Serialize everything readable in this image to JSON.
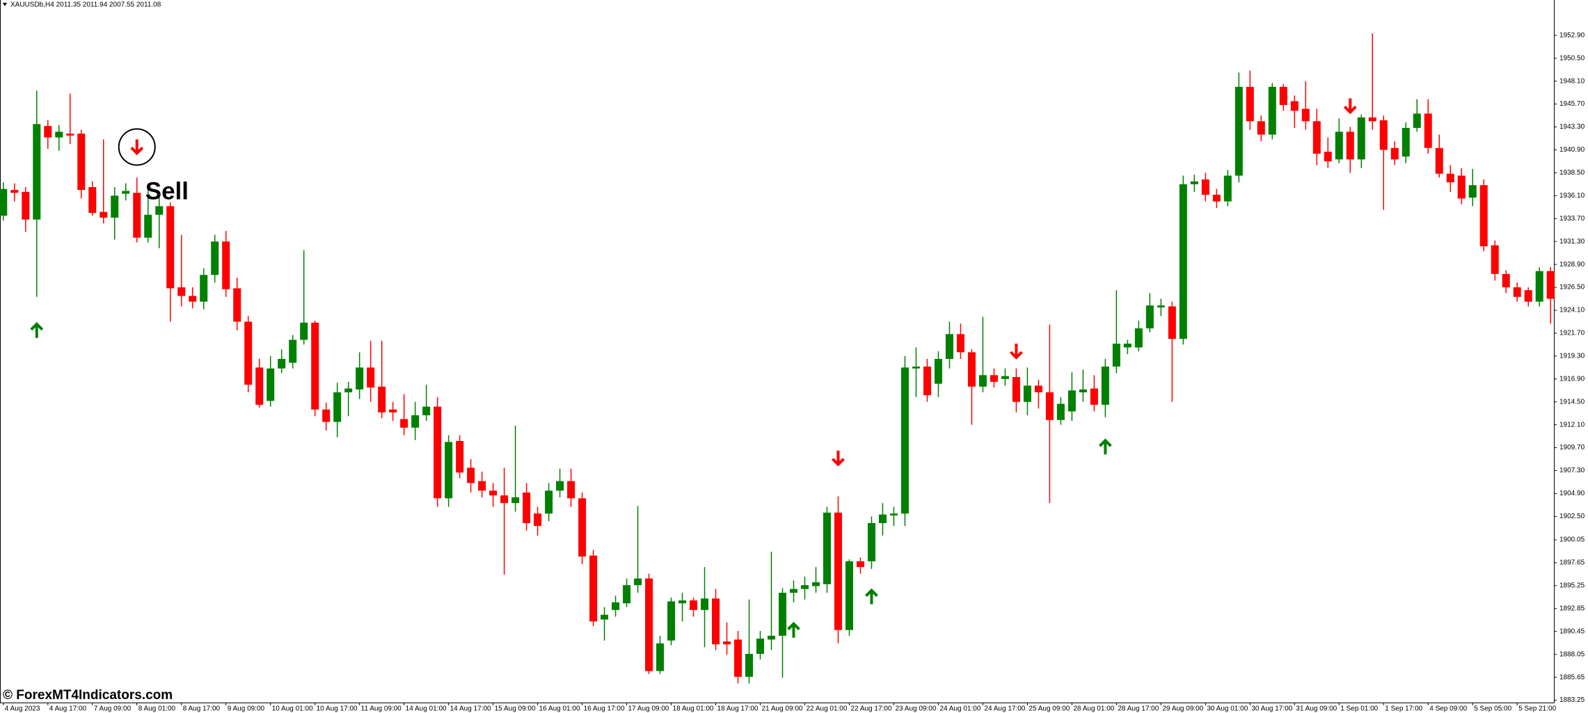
{
  "chart_data": {
    "type": "candlestick",
    "title": "XAUUSDb,H4  2011.35 2011.94 2007.55 2011.08",
    "watermark": "© ForexMT4Indicators.com",
    "annotation": "Sell",
    "up_color": "#008000",
    "down_color": "#ff0000",
    "open": [
      1934.0,
      1936.7,
      1936.5,
      1933.6,
      1943.4,
      1942.2,
      1942.6,
      1942.6,
      1937.0,
      1934.4,
      1933.8,
      1936.3,
      1936.4,
      1931.7,
      1934.1,
      1935.0,
      1926.5,
      1925.6,
      1925.0,
      1927.8,
      1931.3,
      1926.4,
      1922.9,
      1918.1,
      1914.6,
      1918.0,
      1918.6,
      1921.0,
      1922.8,
      1913.7,
      1912.4,
      1915.5,
      1915.8,
      1918.1,
      1916.1,
      1913.7,
      1912.7,
      1911.8,
      1913.1,
      1914.0,
      1904.4,
      1910.4,
      1907.6,
      1906.2,
      1905.2,
      1904.7,
      1903.9,
      1905.0,
      1902.8,
      1902.8,
      1905.2,
      1906.2,
      1904.4,
      1898.4,
      1891.7,
      1892.7,
      1893.4,
      1895.3,
      1896.0,
      1886.3,
      1889.5,
      1893.4,
      1893.7,
      1892.7,
      1893.9,
      1889.4,
      1889.6,
      1885.7,
      1888.1,
      1889.6,
      1890.0,
      1894.5,
      1894.9,
      1895.2,
      1895.4,
      1902.9,
      1890.6,
      1897.8,
      1897.8,
      1901.8,
      1902.6,
      1902.8,
      1918.0,
      1918.2,
      1916.4,
      1919.0,
      1921.6,
      1919.7,
      1916.1,
      1917.3,
      1916.9,
      1917.1,
      1914.5,
      1916.2,
      1915.5,
      1912.6,
      1913.5,
      1915.5,
      1915.9,
      1914.2,
      1918.2,
      1920.2,
      1920.2,
      1922.2,
      1924.4,
      1924.5,
      1921.1,
      1937.3,
      1937.8,
      1936.2,
      1935.5,
      1938.2,
      1947.5,
      1943.9,
      1942.5,
      1947.5,
      1946.0,
      1945.2,
      1943.9,
      1940.7,
      1939.9,
      1942.8,
      1939.9,
      1944.3,
      1944.0,
      1941.1,
      1940.2,
      1943.2,
      1944.7,
      1941.1,
      1938.4,
      1938.2,
      1935.9,
      1937.2,
      1930.9,
      1927.9,
      1926.5,
      1926.2,
      1925.0,
      1928.2
    ],
    "high": [
      1937.5,
      1937.4,
      1937.0,
      1947.1,
      1944.0,
      1943.5,
      1946.8,
      1943.0,
      1937.6,
      1942.0,
      1937.0,
      1937.4,
      1938.0,
      1937.0,
      1936.0,
      1935.4,
      1932.0,
      1926.5,
      1928.5,
      1932.0,
      1932.4,
      1927.5,
      1923.5,
      1919.0,
      1919.3,
      1920.0,
      1921.5,
      1930.4,
      1923.0,
      1914.4,
      1916.5,
      1916.6,
      1919.7,
      1920.9,
      1920.9,
      1914.5,
      1915.3,
      1914.5,
      1916.3,
      1915.0,
      1911.0,
      1911.0,
      1908.5,
      1907.2,
      1906.0,
      1907.6,
      1912.0,
      1906.0,
      1903.5,
      1906.0,
      1907.5,
      1907.5,
      1905.0,
      1899.0,
      1893.0,
      1894.2,
      1896.0,
      1903.6,
      1896.5,
      1890.0,
      1894.0,
      1894.5,
      1894.0,
      1897.2,
      1894.9,
      1891.4,
      1890.5,
      1893.8,
      1890.5,
      1898.8,
      1895.0,
      1895.8,
      1896.2,
      1897.2,
      1903.5,
      1904.6,
      1898.0,
      1898.2,
      1902.5,
      1903.9,
      1903.5,
      1919.3,
      1920.2,
      1919.0,
      1919.8,
      1922.9,
      1922.7,
      1920.0,
      1923.4,
      1918.0,
      1918.0,
      1918.0,
      1918.1,
      1916.8,
      1922.6,
      1915.0,
      1917.6,
      1917.9,
      1917.3,
      1919.0,
      1926.2,
      1921.0,
      1923.0,
      1925.9,
      1925.3,
      1925.0,
      1938.2,
      1938.3,
      1938.5,
      1936.8,
      1938.8,
      1949.0,
      1949.2,
      1944.5,
      1947.9,
      1947.8,
      1946.6,
      1948.1,
      1945.2,
      1942.2,
      1944.2,
      1943.3,
      1944.6,
      1953.1,
      1944.5,
      1941.8,
      1943.8,
      1946.2,
      1946.2,
      1942.5,
      1939.3,
      1939.0,
      1938.9,
      1937.8,
      1931.4,
      1928.3,
      1927.0,
      1926.5,
      1928.6,
      1928.6
    ],
    "low": [
      1933.5,
      1935.5,
      1932.3,
      1925.5,
      1941.0,
      1940.8,
      1941.5,
      1935.8,
      1934.0,
      1933.2,
      1931.5,
      1935.6,
      1931.2,
      1931.2,
      1930.6,
      1922.9,
      1924.5,
      1924.3,
      1924.2,
      1927.0,
      1925.5,
      1922.0,
      1915.5,
      1913.9,
      1914.0,
      1917.5,
      1918.0,
      1920.5,
      1913.0,
      1911.5,
      1910.8,
      1913.0,
      1914.8,
      1914.5,
      1912.8,
      1912.5,
      1911.0,
      1910.5,
      1912.5,
      1903.5,
      1903.5,
      1906.5,
      1905.0,
      1904.5,
      1903.5,
      1896.4,
      1903.0,
      1901.0,
      1900.5,
      1902.0,
      1904.5,
      1903.5,
      1897.5,
      1891.0,
      1889.5,
      1892.0,
      1893.0,
      1894.5,
      1886.0,
      1886.0,
      1889.0,
      1891.5,
      1892.0,
      1888.8,
      1888.5,
      1888.0,
      1885.0,
      1885.0,
      1887.5,
      1888.5,
      1885.6,
      1893.5,
      1893.8,
      1894.5,
      1894.5,
      1889.2,
      1890.0,
      1896.5,
      1897.0,
      1900.5,
      1901.5,
      1901.5,
      1915.0,
      1914.5,
      1915.0,
      1918.0,
      1919.0,
      1912.1,
      1915.5,
      1916.0,
      1916.2,
      1913.4,
      1913.1,
      1913.8,
      1903.9,
      1912.1,
      1912.5,
      1914.5,
      1913.5,
      1912.9,
      1917.5,
      1919.5,
      1919.8,
      1921.8,
      1923.5,
      1914.5,
      1920.5,
      1936.5,
      1935.5,
      1934.8,
      1935.0,
      1937.5,
      1943.0,
      1941.8,
      1942.0,
      1945.0,
      1943.2,
      1943.0,
      1939.3,
      1939.0,
      1939.5,
      1938.5,
      1939.0,
      1943.0,
      1934.6,
      1939.3,
      1939.5,
      1942.8,
      1940.5,
      1938.0,
      1936.5,
      1935.2,
      1935.0,
      1930.3,
      1927.2,
      1925.9,
      1925.0,
      1924.5,
      1924.5,
      1922.7
    ],
    "close": [
      1936.8,
      1936.4,
      1933.6,
      1943.6,
      1942.2,
      1942.8,
      1942.4,
      1936.7,
      1934.3,
      1933.8,
      1936.1,
      1936.6,
      1931.7,
      1934.1,
      1935.0,
      1926.4,
      1925.6,
      1925.0,
      1927.8,
      1931.3,
      1926.3,
      1922.9,
      1916.3,
      1914.2,
      1918.0,
      1919.0,
      1921.0,
      1922.8,
      1913.7,
      1912.4,
      1915.5,
      1915.9,
      1918.1,
      1916.0,
      1913.4,
      1913.4,
      1911.8,
      1913.1,
      1914.0,
      1904.4,
      1910.3,
      1907.1,
      1906.0,
      1905.2,
      1904.7,
      1903.9,
      1904.5,
      1901.8,
      1901.5,
      1905.2,
      1906.2,
      1904.4,
      1898.3,
      1891.5,
      1892.2,
      1893.5,
      1895.3,
      1896.0,
      1886.3,
      1889.2,
      1893.6,
      1893.7,
      1892.7,
      1893.9,
      1889.1,
      1889.1,
      1885.7,
      1888.1,
      1889.7,
      1890.0,
      1894.5,
      1894.9,
      1895.3,
      1895.6,
      1902.9,
      1890.6,
      1897.8,
      1897.2,
      1901.8,
      1902.7,
      1902.8,
      1918.1,
      1918.2,
      1915.2,
      1919.0,
      1921.6,
      1919.7,
      1916.1,
      1917.3,
      1916.6,
      1917.2,
      1914.5,
      1916.2,
      1915.5,
      1912.6,
      1914.3,
      1915.7,
      1915.8,
      1914.2,
      1918.2,
      1920.6,
      1920.6,
      1922.2,
      1924.6,
      1924.6,
      1921.1,
      1937.3,
      1937.6,
      1936.2,
      1935.5,
      1938.2,
      1947.5,
      1943.9,
      1942.5,
      1947.5,
      1945.6,
      1945.0,
      1943.9,
      1940.5,
      1939.7,
      1942.8,
      1939.9,
      1944.3,
      1943.9,
      1940.9,
      1939.9,
      1943.2,
      1944.7,
      1941.1,
      1938.4,
      1937.5,
      1935.8,
      1937.2,
      1930.8,
      1927.9,
      1926.5,
      1925.5,
      1925.0,
      1928.2,
      1925.3
    ],
    "buy_signals": {
      "x": [
        3,
        71,
        78,
        99
      ],
      "y": [
        1922.0,
        1890.6,
        1894.1,
        1909.8
      ]
    },
    "sell_signals": {
      "x": [
        12,
        75,
        91,
        121
      ],
      "y": [
        1941.2,
        1908.6,
        1919.8,
        1945.5
      ]
    },
    "xlim": [
      -0.3,
      139.3
    ],
    "ylim": [
      1883.0,
      1956.6
    ],
    "xticks": [
      {
        "value": 0,
        "label": "4 Aug 2023"
      },
      {
        "value": 4,
        "label": "4 Aug 17:00"
      },
      {
        "value": 8,
        "label": "7 Aug 09:00"
      },
      {
        "value": 12,
        "label": "8 Aug 01:00"
      },
      {
        "value": 16,
        "label": "8 Aug 17:00"
      },
      {
        "value": 20,
        "label": "9 Aug 09:00"
      },
      {
        "value": 24,
        "label": "10 Aug 01:00"
      },
      {
        "value": 28,
        "label": "10 Aug 17:00"
      },
      {
        "value": 32,
        "label": "11 Aug 09:00"
      },
      {
        "value": 36,
        "label": "14 Aug 01:00"
      },
      {
        "value": 40,
        "label": "14 Aug 17:00"
      },
      {
        "value": 44,
        "label": "15 Aug 09:00"
      },
      {
        "value": 48,
        "label": "16 Aug 01:00"
      },
      {
        "value": 52,
        "label": "16 Aug 17:00"
      },
      {
        "value": 56,
        "label": "17 Aug 09:00"
      },
      {
        "value": 60,
        "label": "18 Aug 01:00"
      },
      {
        "value": 64,
        "label": "18 Aug 17:00"
      },
      {
        "value": 68,
        "label": "21 Aug 09:00"
      },
      {
        "value": 72,
        "label": "22 Aug 01:00"
      },
      {
        "value": 76,
        "label": "22 Aug 17:00"
      },
      {
        "value": 80,
        "label": "23 Aug 09:00"
      },
      {
        "value": 84,
        "label": "24 Aug 01:00"
      },
      {
        "value": 88,
        "label": "24 Aug 17:00"
      },
      {
        "value": 92,
        "label": "25 Aug 09:00"
      },
      {
        "value": 96,
        "label": "28 Aug 01:00"
      },
      {
        "value": 100,
        "label": "28 Aug 17:00"
      },
      {
        "value": 104,
        "label": "29 Aug 09:00"
      },
      {
        "value": 108,
        "label": "30 Aug 01:00"
      },
      {
        "value": 112,
        "label": "30 Aug 17:00"
      },
      {
        "value": 116,
        "label": "31 Aug 09:00"
      },
      {
        "value": 120,
        "label": "1 Sep 01:00"
      },
      {
        "value": 124,
        "label": "1 Sep 17:00"
      },
      {
        "value": 128,
        "label": "4 Sep 09:00"
      },
      {
        "value": 132,
        "label": "5 Sep 05:00"
      },
      {
        "value": 136,
        "label": "5 Sep 21:00"
      }
    ],
    "yticks": [
      {
        "value": 1952.9,
        "label": "1952.90"
      },
      {
        "value": 1950.5,
        "label": "1950.50"
      },
      {
        "value": 1948.1,
        "label": "1948.10"
      },
      {
        "value": 1945.7,
        "label": "1945.70"
      },
      {
        "value": 1943.3,
        "label": "1943.30"
      },
      {
        "value": 1940.9,
        "label": "1940.90"
      },
      {
        "value": 1938.5,
        "label": "1938.50"
      },
      {
        "value": 1936.1,
        "label": "1936.10"
      },
      {
        "value": 1933.7,
        "label": "1933.70"
      },
      {
        "value": 1931.3,
        "label": "1931.30"
      },
      {
        "value": 1928.9,
        "label": "1928.90"
      },
      {
        "value": 1926.5,
        "label": "1926.50"
      },
      {
        "value": 1924.1,
        "label": "1924.10"
      },
      {
        "value": 1921.7,
        "label": "1921.70"
      },
      {
        "value": 1919.3,
        "label": "1919.30"
      },
      {
        "value": 1916.9,
        "label": "1916.90"
      },
      {
        "value": 1914.5,
        "label": "1914.50"
      },
      {
        "value": 1912.1,
        "label": "1912.10"
      },
      {
        "value": 1909.7,
        "label": "1909.70"
      },
      {
        "value": 1907.3,
        "label": "1907.30"
      },
      {
        "value": 1904.9,
        "label": "1904.90"
      },
      {
        "value": 1902.5,
        "label": "1902.50"
      },
      {
        "value": 1900.05,
        "label": "1900.05"
      },
      {
        "value": 1897.65,
        "label": "1897.65"
      },
      {
        "value": 1895.25,
        "label": "1895.25"
      },
      {
        "value": 1892.85,
        "label": "1892.85"
      },
      {
        "value": 1890.45,
        "label": "1890.45"
      },
      {
        "value": 1888.05,
        "label": "1888.05"
      },
      {
        "value": 1885.65,
        "label": "1885.65"
      },
      {
        "value": 1883.25,
        "label": "1883.25"
      }
    ]
  }
}
